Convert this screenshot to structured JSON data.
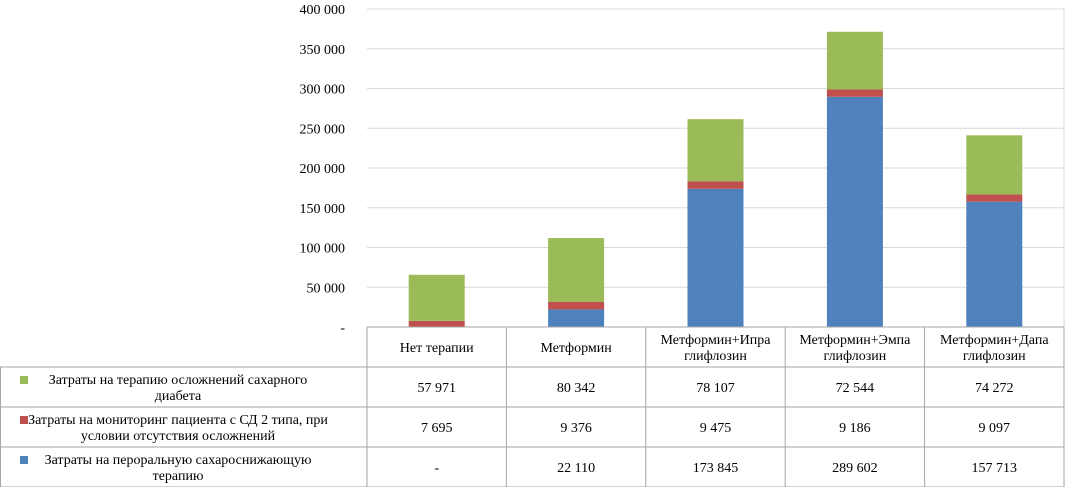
{
  "chart_data": {
    "type": "bar",
    "stacked": true,
    "categories": [
      [
        "Нет терапии"
      ],
      [
        "Метформин"
      ],
      [
        "Метформин+Ипра",
        "глифлозин"
      ],
      [
        "Метформин+Эмпа",
        "глифлозин"
      ],
      [
        "Метформин+Дапа",
        "глифлозин"
      ]
    ],
    "series": [
      {
        "name": [
          "Затраты на терапию осложнений сахарного",
          "диабета"
        ],
        "color": "#9bbb59",
        "values": [
          57971,
          80342,
          78107,
          72544,
          74272
        ],
        "labels": [
          "57 971",
          "80 342",
          "78 107",
          "72 544",
          "74 272"
        ]
      },
      {
        "name": [
          "Затраты на мониторинг пациента с СД 2 типа, при",
          "условии отсутствия осложнений"
        ],
        "color": "#c0504d",
        "values": [
          7695,
          9376,
          9475,
          9186,
          9097
        ],
        "labels": [
          "7 695",
          "9 376",
          "9 475",
          "9 186",
          "9 097"
        ]
      },
      {
        "name": [
          "Затраты на пероральную сахароснижающую",
          "терапию"
        ],
        "color": "#4f81bd",
        "values": [
          0,
          22110,
          173845,
          289602,
          157713
        ],
        "labels": [
          "-",
          "22 110",
          "173 845",
          "289 602",
          "157 713"
        ]
      }
    ],
    "stack_order_bottom_to_top": [
      2,
      1,
      0
    ],
    "ylim": [
      0,
      400000
    ],
    "yticks": [
      0,
      50000,
      100000,
      150000,
      200000,
      250000,
      300000,
      350000,
      400000
    ],
    "ytick_labels": [
      "-",
      "50 000",
      "100 000",
      "150 000",
      "200 000",
      "250 000",
      "300 000",
      "350 000",
      "400 000"
    ],
    "grid": true,
    "legend": "data-table"
  }
}
